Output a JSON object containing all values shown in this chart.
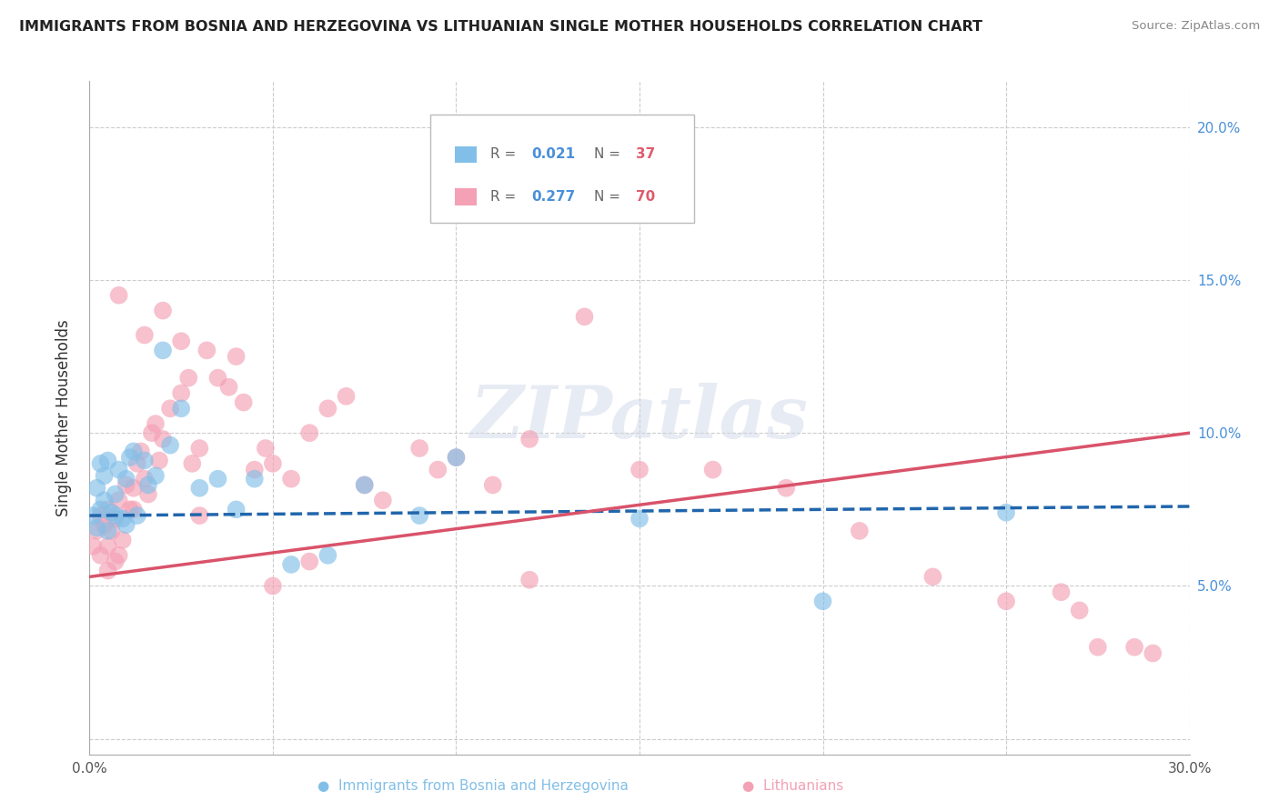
{
  "title": "IMMIGRANTS FROM BOSNIA AND HERZEGOVINA VS LITHUANIAN SINGLE MOTHER HOUSEHOLDS CORRELATION CHART",
  "source": "Source: ZipAtlas.com",
  "ylabel": "Single Mother Households",
  "xlim": [
    0.0,
    0.3
  ],
  "ylim": [
    -0.005,
    0.215
  ],
  "yticks": [
    0.0,
    0.05,
    0.1,
    0.15,
    0.2
  ],
  "xticks": [
    0.0,
    0.05,
    0.1,
    0.15,
    0.2,
    0.25,
    0.3
  ],
  "legend_r1": "0.021",
  "legend_n1": "37",
  "legend_r2": "0.277",
  "legend_n2": "70",
  "color_blue": "#82bfe8",
  "color_pink": "#f4a0b5",
  "color_blue_line": "#2166ac",
  "color_pink_line": "#d9536a",
  "watermark": "ZIPatlas",
  "blue_scatter_x": [
    0.001,
    0.002,
    0.002,
    0.003,
    0.003,
    0.004,
    0.004,
    0.005,
    0.005,
    0.006,
    0.007,
    0.007,
    0.008,
    0.009,
    0.01,
    0.01,
    0.011,
    0.012,
    0.013,
    0.015,
    0.016,
    0.018,
    0.02,
    0.022,
    0.025,
    0.03,
    0.035,
    0.04,
    0.045,
    0.055,
    0.065,
    0.075,
    0.09,
    0.1,
    0.15,
    0.2,
    0.25
  ],
  "blue_scatter_y": [
    0.073,
    0.082,
    0.069,
    0.075,
    0.09,
    0.078,
    0.086,
    0.068,
    0.091,
    0.074,
    0.08,
    0.073,
    0.088,
    0.072,
    0.085,
    0.07,
    0.092,
    0.094,
    0.073,
    0.091,
    0.083,
    0.086,
    0.127,
    0.096,
    0.108,
    0.082,
    0.085,
    0.075,
    0.085,
    0.057,
    0.06,
    0.083,
    0.073,
    0.092,
    0.072,
    0.045,
    0.074
  ],
  "pink_scatter_x": [
    0.001,
    0.002,
    0.003,
    0.003,
    0.004,
    0.005,
    0.005,
    0.006,
    0.007,
    0.007,
    0.008,
    0.009,
    0.01,
    0.011,
    0.012,
    0.013,
    0.014,
    0.015,
    0.016,
    0.017,
    0.018,
    0.019,
    0.02,
    0.022,
    0.025,
    0.027,
    0.028,
    0.03,
    0.032,
    0.035,
    0.038,
    0.04,
    0.042,
    0.045,
    0.048,
    0.05,
    0.055,
    0.06,
    0.065,
    0.07,
    0.075,
    0.08,
    0.09,
    0.095,
    0.1,
    0.11,
    0.12,
    0.135,
    0.15,
    0.17,
    0.19,
    0.21,
    0.23,
    0.25,
    0.265,
    0.275,
    0.285,
    0.005,
    0.008,
    0.012,
    0.02,
    0.025,
    0.05,
    0.12,
    0.27,
    0.29,
    0.03,
    0.06,
    0.015,
    0.008
  ],
  "pink_scatter_y": [
    0.063,
    0.068,
    0.073,
    0.06,
    0.07,
    0.075,
    0.063,
    0.068,
    0.058,
    0.072,
    0.078,
    0.065,
    0.083,
    0.075,
    0.082,
    0.09,
    0.094,
    0.085,
    0.08,
    0.1,
    0.103,
    0.091,
    0.098,
    0.108,
    0.113,
    0.118,
    0.09,
    0.095,
    0.127,
    0.118,
    0.115,
    0.125,
    0.11,
    0.088,
    0.095,
    0.09,
    0.085,
    0.1,
    0.108,
    0.112,
    0.083,
    0.078,
    0.095,
    0.088,
    0.092,
    0.083,
    0.052,
    0.138,
    0.088,
    0.088,
    0.082,
    0.068,
    0.053,
    0.045,
    0.048,
    0.03,
    0.03,
    0.055,
    0.06,
    0.075,
    0.14,
    0.13,
    0.05,
    0.098,
    0.042,
    0.028,
    0.073,
    0.058,
    0.132,
    0.145
  ]
}
